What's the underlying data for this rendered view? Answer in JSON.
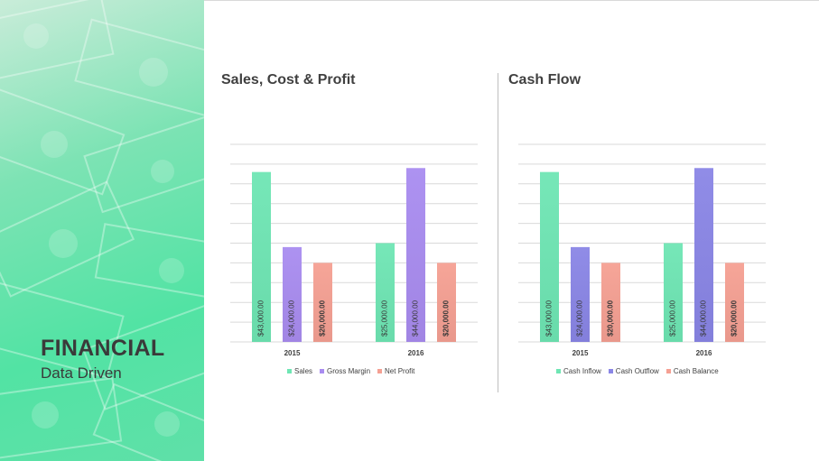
{
  "sidebar": {
    "title": "FINANCIAL",
    "subtitle": "Data Driven"
  },
  "colors": {
    "panel_gradient": [
      "#c9ecd9",
      "#52e3a4"
    ],
    "text_dark": "#3a3a3a",
    "grid": "#d9d9d9"
  },
  "chart_data": [
    {
      "type": "bar",
      "title": "Sales, Cost & Profit",
      "categories": [
        "2015",
        "2016"
      ],
      "series": [
        {
          "name": "Sales",
          "values": [
            43000,
            25000
          ],
          "labels": [
            "$43,000.00",
            "$25,000.00"
          ],
          "color": "#6fe6b4"
        },
        {
          "name": "Gross Margin",
          "values": [
            24000,
            44000
          ],
          "labels": [
            "$24,000.00",
            "$44,000.00"
          ],
          "color": "#a98cf0"
        },
        {
          "name": "Net Profit",
          "values": [
            20000,
            20000
          ],
          "labels": [
            "$20,000.00",
            "$20,000.00"
          ],
          "color": "#f5a093"
        }
      ],
      "ylim": [
        0,
        50000
      ],
      "grid": true,
      "legend": "bottom"
    },
    {
      "type": "bar",
      "title": "Cash Flow",
      "categories": [
        "2015",
        "2016"
      ],
      "series": [
        {
          "name": "Cash Inflow",
          "values": [
            43000,
            25000
          ],
          "labels": [
            "$43,000.00",
            "$25,000.00"
          ],
          "color": "#6fe6b4"
        },
        {
          "name": "Cash Outflow",
          "values": [
            24000,
            44000
          ],
          "labels": [
            "$24,000.00",
            "$44,000.00"
          ],
          "color": "#8a86e6"
        },
        {
          "name": "Cash Balance",
          "values": [
            20000,
            20000
          ],
          "labels": [
            "$20,000.00",
            "$20,000.00"
          ],
          "color": "#f5a093"
        }
      ],
      "ylim": [
        0,
        50000
      ],
      "grid": true,
      "legend": "bottom"
    }
  ]
}
